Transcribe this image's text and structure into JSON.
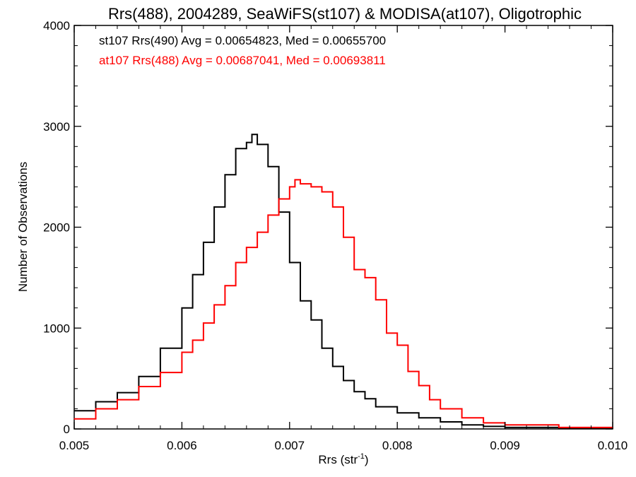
{
  "chart_data": {
    "type": "line",
    "title": "Rrs(488), 2004289, SeaWiFS(st107) & MODISA(at107), Oligotrophic",
    "xlabel": "Rrs (str",
    "xlabel_sup": "-1",
    "xlabel_suffix": ")",
    "ylabel": "Number of Observations",
    "xlim": [
      0.005,
      0.01
    ],
    "ylim": [
      0,
      4000
    ],
    "xticks": [
      0.005,
      0.006,
      0.007,
      0.008,
      0.009,
      0.01
    ],
    "xtick_labels": [
      "0.005",
      "0.006",
      "0.007",
      "0.008",
      "0.009",
      "0.010"
    ],
    "yticks": [
      0,
      1000,
      2000,
      3000,
      4000
    ],
    "ytick_labels": [
      "0",
      "1000",
      "2000",
      "3000",
      "4000"
    ],
    "grid": false,
    "legend_placement": "top-left",
    "series": [
      {
        "name": "st107 Rrs(490) Avg = 0.00654823, Med = 0.00655700",
        "color": "#000000",
        "x": [
          0.005,
          0.0052,
          0.0054,
          0.0056,
          0.0058,
          0.006,
          0.0061,
          0.0062,
          0.0063,
          0.0064,
          0.0065,
          0.0066,
          0.00665,
          0.0067,
          0.0068,
          0.0069,
          0.007,
          0.0071,
          0.0072,
          0.0073,
          0.0074,
          0.0075,
          0.0076,
          0.0077,
          0.0078,
          0.008,
          0.0082,
          0.0084,
          0.0086,
          0.0088,
          0.009,
          0.0095,
          0.01
        ],
        "y": [
          180,
          270,
          360,
          520,
          800,
          1200,
          1530,
          1850,
          2200,
          2520,
          2780,
          2840,
          2920,
          2820,
          2600,
          2150,
          1650,
          1270,
          1080,
          800,
          620,
          480,
          370,
          300,
          220,
          160,
          110,
          70,
          40,
          25,
          15,
          8,
          5
        ]
      },
      {
        "name": "at107 Rrs(488) Avg = 0.00687041, Med = 0.00693811",
        "color": "#ff0000",
        "x": [
          0.005,
          0.0052,
          0.0054,
          0.0056,
          0.0058,
          0.006,
          0.0061,
          0.0062,
          0.0063,
          0.0064,
          0.0065,
          0.0066,
          0.0067,
          0.0068,
          0.0069,
          0.007,
          0.00705,
          0.0071,
          0.0072,
          0.0073,
          0.0074,
          0.0075,
          0.0076,
          0.0077,
          0.0078,
          0.0079,
          0.008,
          0.0081,
          0.0082,
          0.0083,
          0.0084,
          0.0086,
          0.0088,
          0.009,
          0.0095,
          0.01
        ],
        "y": [
          100,
          200,
          290,
          420,
          560,
          760,
          880,
          1050,
          1230,
          1420,
          1650,
          1800,
          1950,
          2120,
          2280,
          2400,
          2470,
          2430,
          2400,
          2350,
          2200,
          1900,
          1580,
          1500,
          1280,
          950,
          830,
          570,
          430,
          290,
          200,
          110,
          60,
          40,
          15,
          10
        ]
      }
    ]
  }
}
